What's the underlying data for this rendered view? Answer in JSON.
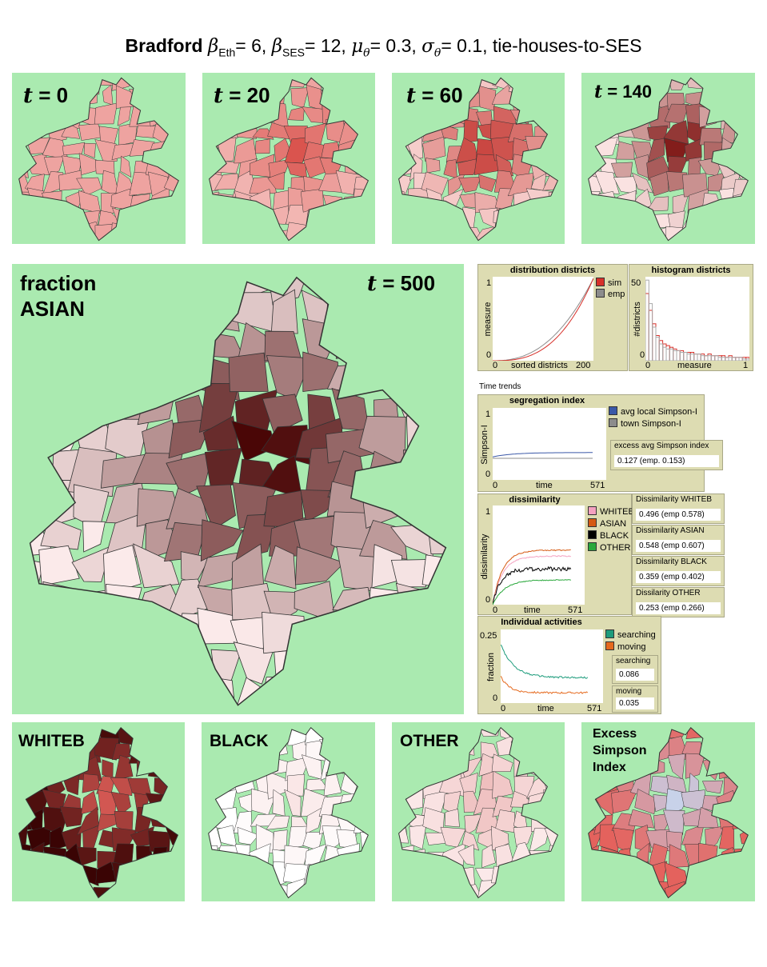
{
  "title": {
    "city": "Bradford",
    "beta": "β",
    "eth_sub": "Eth",
    "eth_val": "= 6, ",
    "ses_sub": "SES",
    "ses_val": "= 12, ",
    "mu": "μ",
    "theta": "θ",
    "mu_val": "= 0.3, ",
    "sigma": "σ",
    "sigma_val": "= 0.1, tie-houses-to-SES"
  },
  "t_symbol": "t",
  "top_panels": [
    {
      "label": " = 0"
    },
    {
      "label": " = 20"
    },
    {
      "label": " = 60"
    },
    {
      "label": " = 140"
    }
  ],
  "main_panel": {
    "label_line1": "fraction",
    "label_line2": "ASIAN",
    "time": " = 500"
  },
  "bottom_panels": [
    {
      "label": "WHITEB"
    },
    {
      "label": "BLACK"
    },
    {
      "label": "OTHER"
    },
    {
      "label_line1": "Excess",
      "label_line2": "Simpson",
      "label_line3": "Index"
    }
  ],
  "distribution": {
    "title": "distribution districts",
    "ylabel": "measure",
    "xlabel": "sorted districts",
    "x_min": "0",
    "x_max": "200",
    "y_min": "0",
    "y_max": "1",
    "legend": [
      {
        "name": "sim",
        "color": "#d7302a"
      },
      {
        "name": "emp",
        "color": "#8c8c8c"
      }
    ]
  },
  "histogram": {
    "title": "histogram districts",
    "ylabel": "#districts",
    "xlabel": "measure",
    "x_min": "0",
    "x_max": "1",
    "y_min": "0",
    "y_max": "50"
  },
  "time_trends_label": "Time trends",
  "segregation": {
    "title": "segregation index",
    "ylabel": "Simpson-I",
    "xlabel": "time",
    "x_min": "0",
    "x_max": "571",
    "y_min": "0",
    "y_max": "1",
    "legend": [
      {
        "name": "avg local Simpson-I",
        "color": "#3a58a8"
      },
      {
        "name": "town Simpson-I",
        "color": "#8c8c8c"
      }
    ],
    "monitor": {
      "label": "excess avg Simpson index",
      "value": "0.127 (emp. 0.153)"
    }
  },
  "dissimilarity": {
    "title": "dissimilarity",
    "ylabel": "dissimilarity",
    "xlabel": "time",
    "x_min": "0",
    "x_max": "571",
    "y_min": "0",
    "y_max": "1",
    "legend": [
      {
        "name": "WHITEB",
        "color": "#f4a1c0"
      },
      {
        "name": "ASIAN",
        "color": "#d65a12"
      },
      {
        "name": "BLACK",
        "color": "#000000"
      },
      {
        "name": "OTHER",
        "color": "#2aa83c"
      }
    ],
    "monitors": [
      {
        "label": "Dissimilarity WHITEB",
        "value": "0.496 (emp 0.578)"
      },
      {
        "label": "Dissimilarity ASIAN",
        "value": "0.548 (emp 0.607)"
      },
      {
        "label": "Dissimilarity BLACK",
        "value": "0.359 (emp 0.402)"
      },
      {
        "label": "Dissilarity OTHER",
        "value": "0.253 (emp 0.266)"
      }
    ]
  },
  "activities": {
    "title": "Individual activities",
    "ylabel": "fraction",
    "xlabel": "time",
    "x_min": "0",
    "x_max": "571",
    "y_min": "0",
    "y_max": "0.25",
    "legend": [
      {
        "name": "searching",
        "color": "#1e9c7c"
      },
      {
        "name": "moving",
        "color": "#e5691d"
      }
    ],
    "monitors": [
      {
        "label": "searching",
        "value": "0.086"
      },
      {
        "label": "moving",
        "value": "0.035"
      }
    ]
  }
}
